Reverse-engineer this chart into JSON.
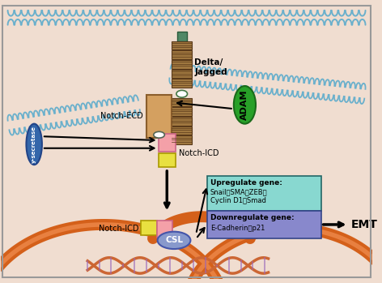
{
  "background_color": "#f0ddd0",
  "border_color": "#999999",
  "membrane_color": "#6ab0cc",
  "nucleus_color": "#d4601a",
  "delta_jagged_color": "#a07840",
  "delta_jagged_label": "Delta/\nJagged",
  "notch_ecd_color": "#d4a060",
  "notch_ecd_label": "Notch-ECD",
  "adam_color": "#28a028",
  "adam_label": "ADAM",
  "gamma_color": "#3366aa",
  "gamma_label": "y-secretase",
  "pink_box_color": "#f4a0a8",
  "yellow_box_color": "#e8e040",
  "notch_icd_label": "Notch-ICD",
  "csl_color": "#8899cc",
  "csl_label": "CSL",
  "upregulate_bg": "#88d8d0",
  "upregulate_label": "Upregulate gene:",
  "downregulate_bg": "#8888cc",
  "downregulate_label": "Downregulate gene:",
  "emt_label": "EMT",
  "arrow_color": "#111111",
  "dna_color": "#222222",
  "dna_color2": "#cc6633"
}
